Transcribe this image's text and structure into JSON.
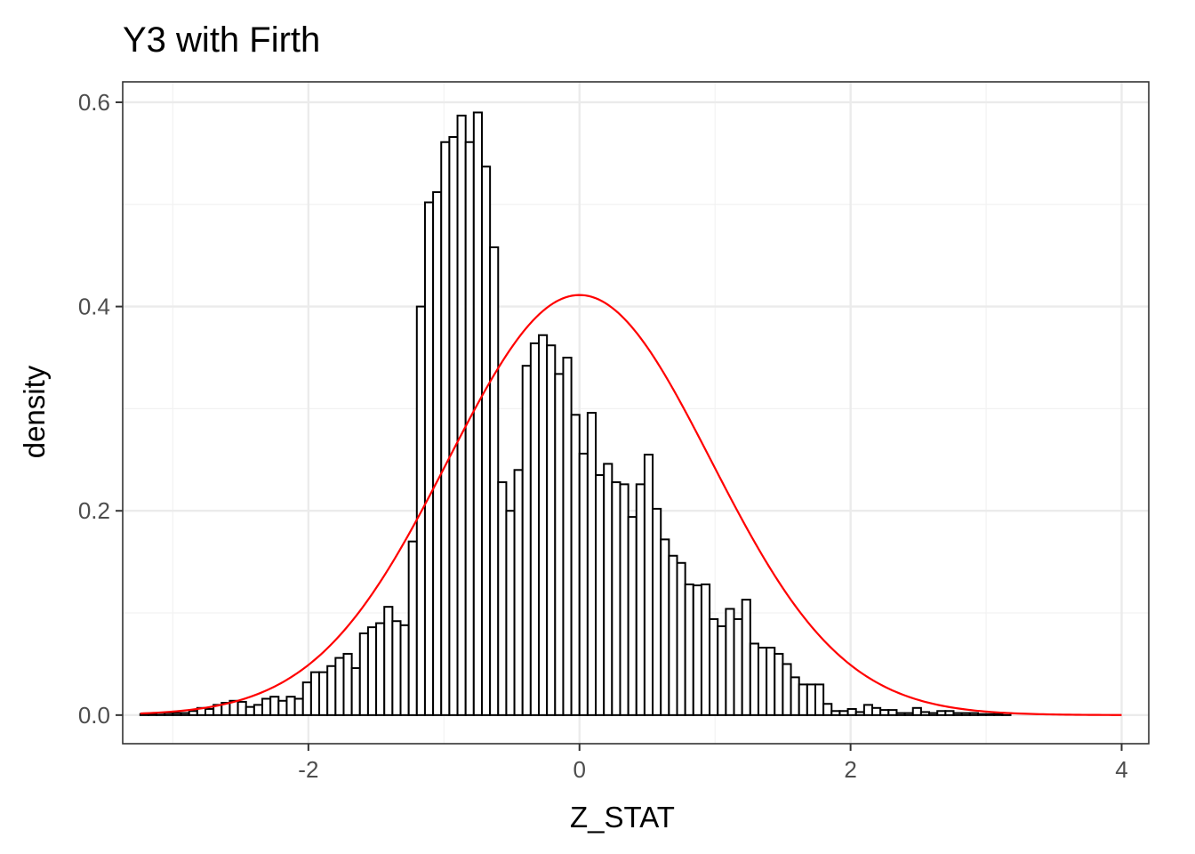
{
  "chart_data": {
    "type": "bar",
    "title": "Y3 with Firth",
    "xlabel": "Z_STAT",
    "ylabel": "density",
    "xlim": [
      -3.37,
      4.2
    ],
    "ylim": [
      -0.028,
      0.62
    ],
    "x_ticks": [
      {
        "value": -2,
        "label": "-2"
      },
      {
        "value": 0,
        "label": "0"
      },
      {
        "value": 2,
        "label": "2"
      },
      {
        "value": 4,
        "label": "4"
      }
    ],
    "y_ticks": [
      {
        "value": 0.0,
        "label": "0.0"
      },
      {
        "value": 0.2,
        "label": "0.2"
      },
      {
        "value": 0.4,
        "label": "0.4"
      },
      {
        "value": 0.6,
        "label": "0.6"
      }
    ],
    "grid": true,
    "bin_start": -3.24,
    "bin_width": 0.06,
    "values": [
      0.001,
      0.001,
      0.002,
      0.002,
      0.002,
      0.002,
      0.004,
      0.007,
      0.006,
      0.01,
      0.012,
      0.014,
      0.013,
      0.008,
      0.01,
      0.016,
      0.018,
      0.014,
      0.018,
      0.016,
      0.032,
      0.042,
      0.042,
      0.048,
      0.056,
      0.06,
      0.046,
      0.08,
      0.086,
      0.09,
      0.106,
      0.092,
      0.088,
      0.17,
      0.4,
      0.502,
      0.512,
      0.561,
      0.566,
      0.587,
      0.561,
      0.59,
      0.537,
      0.458,
      0.228,
      0.2,
      0.24,
      0.342,
      0.364,
      0.372,
      0.362,
      0.334,
      0.35,
      0.294,
      0.256,
      0.296,
      0.235,
      0.246,
      0.228,
      0.226,
      0.194,
      0.226,
      0.255,
      0.202,
      0.172,
      0.156,
      0.149,
      0.128,
      0.127,
      0.128,
      0.094,
      0.087,
      0.104,
      0.094,
      0.113,
      0.07,
      0.066,
      0.066,
      0.06,
      0.05,
      0.037,
      0.03,
      0.03,
      0.03,
      0.011,
      0.004,
      0.004,
      0.006,
      0.003,
      0.01,
      0.007,
      0.005,
      0.005,
      0.002,
      0.002,
      0.007,
      0.003,
      0.002,
      0.004,
      0.004,
      0.002,
      0.002,
      0.002,
      0.001,
      0.001,
      0.001,
      0.002
    ],
    "normal_curve": {
      "mean": 0.0,
      "sd": 0.97,
      "x_range": [
        -3.24,
        4.0
      ],
      "color": "#ff0000"
    },
    "colors": {
      "bar_fill": "#ffffff",
      "bar_stroke": "#000000",
      "grid_major": "#ebebeb",
      "grid_minor": "#f2f2f2",
      "panel_border": "#333333",
      "curve": "#ff0000"
    }
  }
}
